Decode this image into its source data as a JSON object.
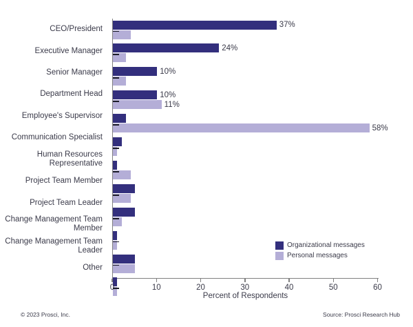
{
  "chart_data": {
    "type": "bar",
    "orientation": "horizontal",
    "title": "",
    "categories": [
      "CEO/President",
      "Executive Manager",
      "Senior Manager",
      "Department Head",
      "Employee's Supervisor",
      "Communication Specialist",
      "Human Resources Representative",
      "Project Team Member",
      "Project Team Leader",
      "Change Management Team Member",
      "Change Management Team Leader",
      "Other"
    ],
    "series": [
      {
        "name": "Organizational messages",
        "color": "#332f7d",
        "values": [
          37,
          24,
          10,
          10,
          3,
          2,
          1,
          5,
          5,
          1,
          5,
          1
        ],
        "bar_labels": [
          "37%",
          "24%",
          "10%",
          "10%",
          "",
          "",
          "",
          "",
          "",
          "",
          "",
          ""
        ]
      },
      {
        "name": "Personal messages",
        "color": "#b4aed7",
        "values": [
          4,
          3,
          3,
          11,
          58,
          1,
          4,
          4,
          2,
          1,
          5,
          1
        ],
        "bar_labels": [
          "",
          "",
          "",
          "11%",
          "58%",
          "",
          "",
          "",
          "",
          "",
          "",
          ""
        ]
      }
    ],
    "xlabel": "Percent of Respondents",
    "ylabel": "",
    "xlim": [
      0,
      60
    ],
    "xticks": [
      0,
      10,
      20,
      30,
      40,
      50,
      60
    ],
    "grid": false,
    "legend_position": "lower right"
  },
  "footer": {
    "copyright": "© 2023 Prosci, Inc.",
    "source": "Source: Prosci Research Hub"
  },
  "colors": {
    "organizational": "#332f7d",
    "personal": "#b4aed7",
    "axis": "#7f7f7f",
    "text": "#3a3a49",
    "category_tick": "#1c1c28"
  }
}
